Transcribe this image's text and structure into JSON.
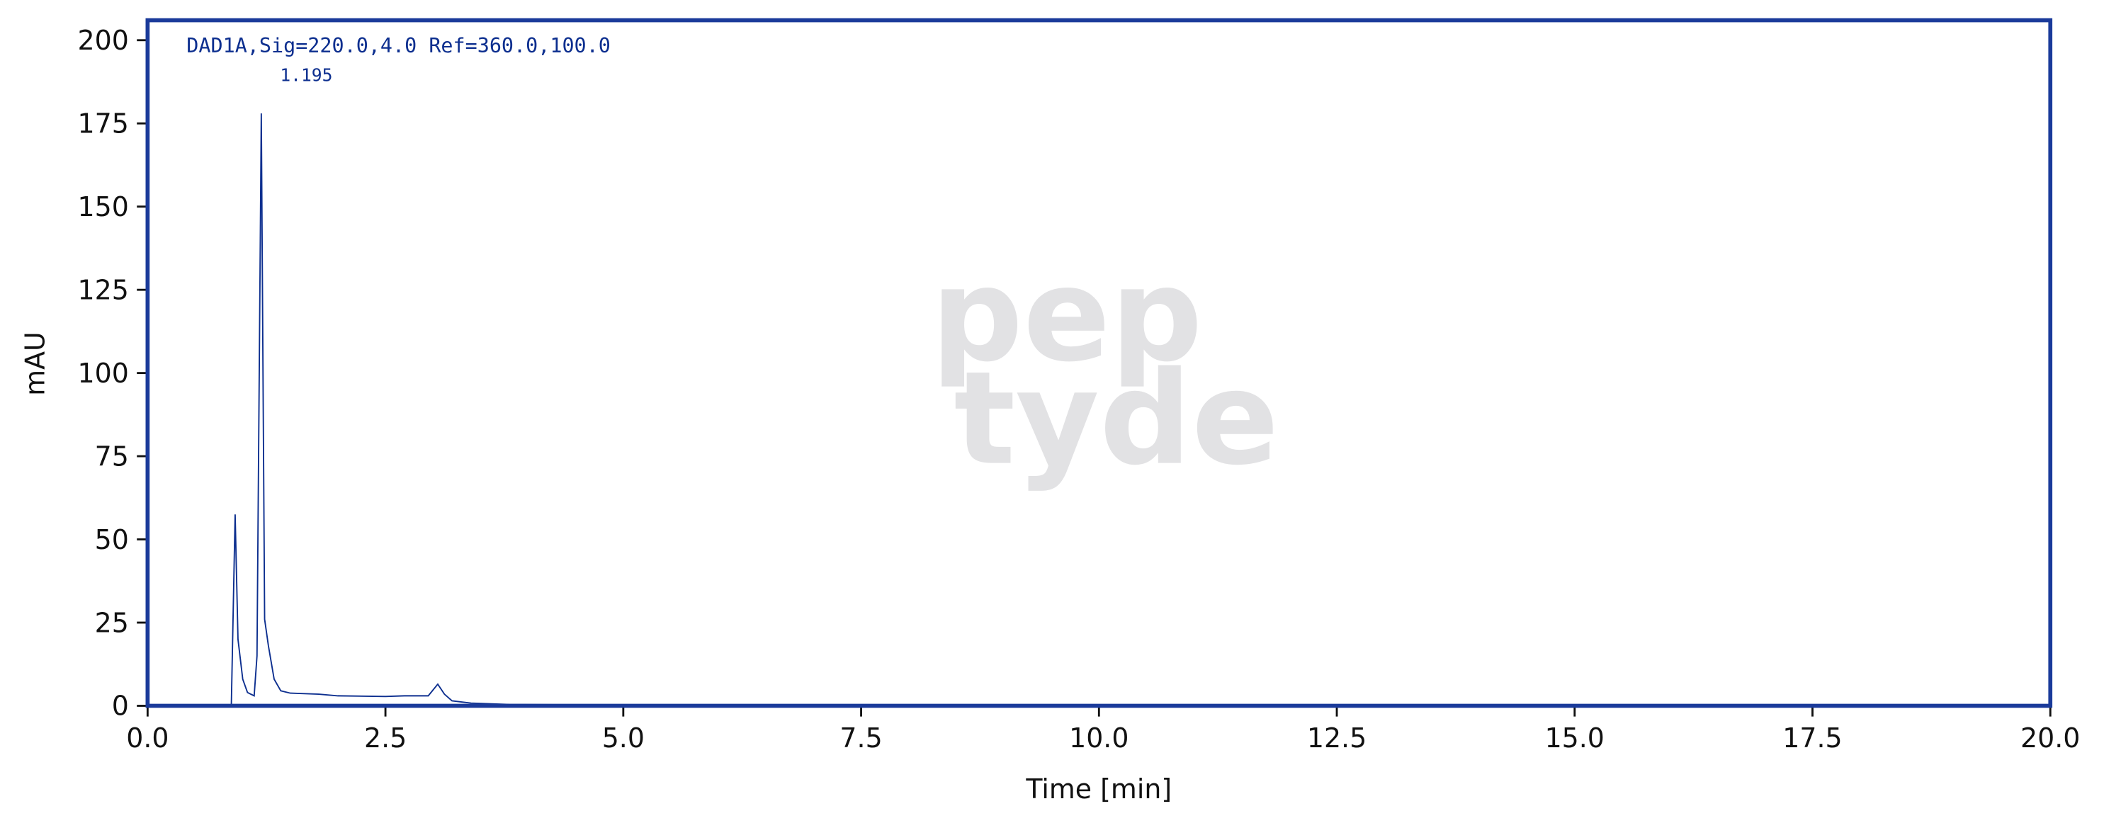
{
  "chart_data": {
    "type": "line",
    "x": [
      0,
      0.85,
      0.88,
      0.92,
      0.95,
      1.0,
      1.05,
      1.12,
      1.15,
      1.195,
      1.23,
      1.27,
      1.33,
      1.4,
      1.5,
      1.8,
      2.0,
      2.5,
      2.7,
      2.95,
      3.05,
      3.12,
      3.2,
      3.4,
      3.8,
      5,
      8.5,
      9.7,
      10.5,
      12,
      20
    ],
    "series": [
      {
        "name": "DAD1A,Sig=220.0,4.0 Ref=360.0,100.0",
        "color": "#0d2f8f",
        "values": [
          0,
          0,
          0,
          57.5,
          20,
          8,
          4,
          3,
          15,
          178,
          26,
          18,
          8,
          4.5,
          3.8,
          3.5,
          3.0,
          2.8,
          3.0,
          3.0,
          6.5,
          3.5,
          1.5,
          0.8,
          0.4,
          0.2,
          0.3,
          0.3,
          0.3,
          0.1,
          0.1
        ]
      }
    ],
    "annotations": [
      {
        "label": "1.195",
        "x": 1.195,
        "y": 178
      }
    ],
    "xlabel": "Time [min]",
    "ylabel": "mAU",
    "xlim": [
      0,
      20
    ],
    "ylim": [
      0,
      206
    ],
    "xticks": [
      {
        "value": 0,
        "label": "0.0"
      },
      2.5,
      {
        "value": 5,
        "label": "5.0"
      },
      7.5,
      {
        "value": 10,
        "label": "10.0"
      },
      12.5,
      {
        "value": 15,
        "label": "15.0"
      },
      17.5,
      {
        "value": 20,
        "label": "20.0"
      }
    ],
    "yticks": [
      0,
      25,
      50,
      75,
      100,
      125,
      150,
      175,
      200
    ],
    "frame_color": "#1a3a9a",
    "watermark": [
      "pep",
      "tyde"
    ]
  }
}
